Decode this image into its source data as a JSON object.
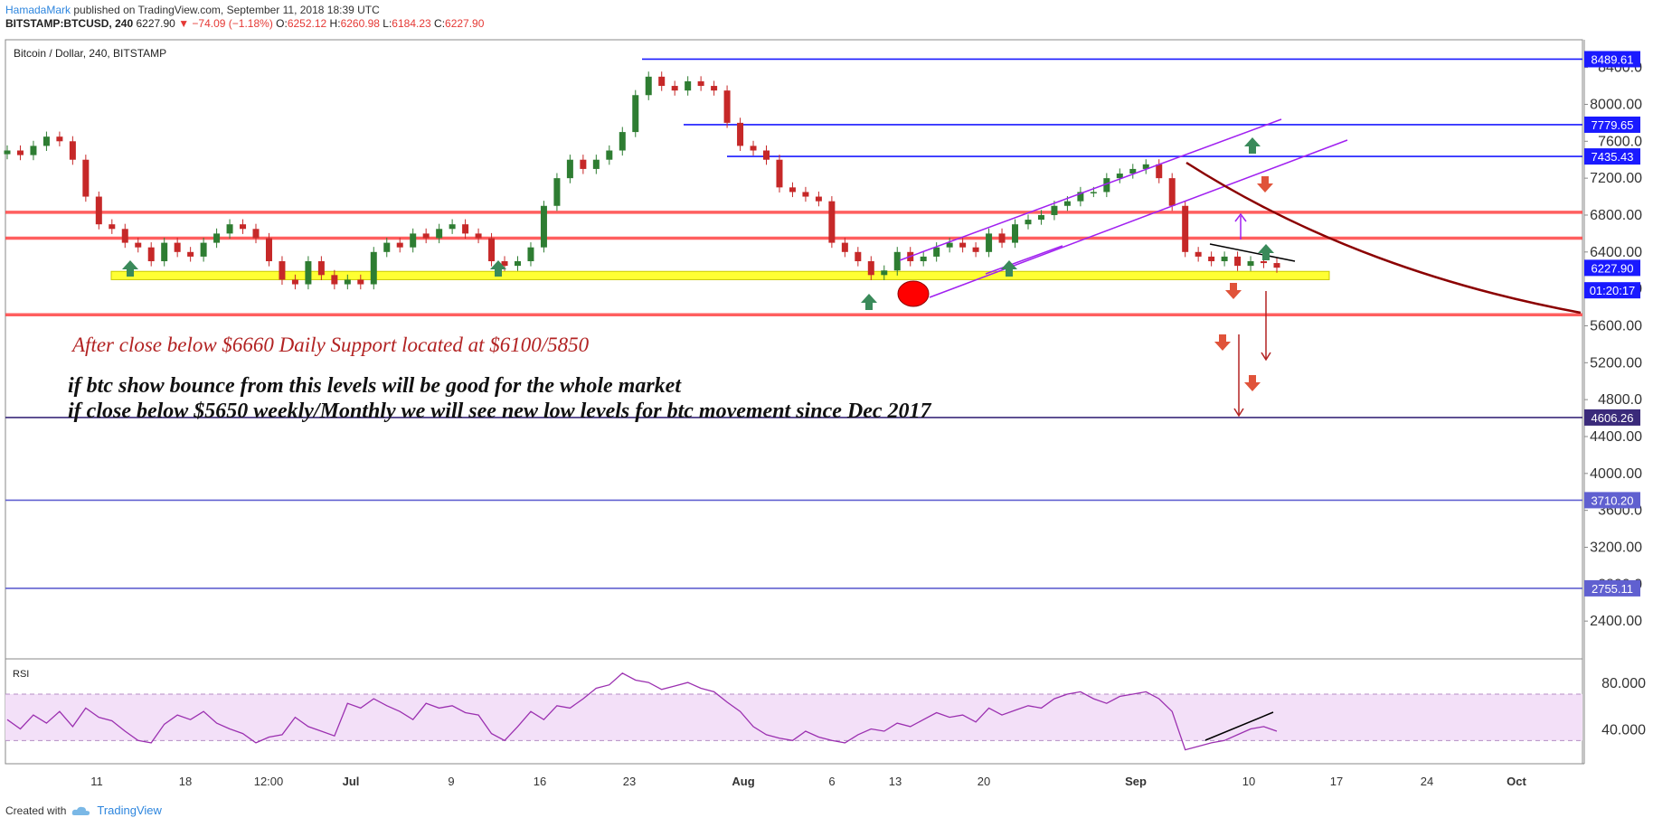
{
  "header": {
    "author": "HamadaMark",
    "published": "published on TradingView.com, September 11, 2018 18:39 UTC",
    "symbol": "BITSTAMP:BTCUSD, 240",
    "last": "6227.90",
    "change": "▼ −74.09 (−1.18%)",
    "o": "6252.12",
    "h": "6260.98",
    "l": "6184.23",
    "c": "6227.90"
  },
  "chart_title": "Bitcoin / Dollar, 240, BITSTAMP",
  "footer": {
    "created_with": "Created with",
    "brand": "TradingView"
  },
  "annotations": {
    "support_note": "After close below $6660 Daily Support located at $6100/5850",
    "line1": "if btc show bounce from this levels will be good for the whole market",
    "line2": "if close below $5650 weekly/Monthly we will see new low levels for btc movement since Dec 2017"
  },
  "price_labels": [
    {
      "text": "8489.61",
      "price": 8489.61,
      "color": "#1a1aff",
      "text_color": "#ffffff"
    },
    {
      "text": "7779.65",
      "price": 7779.65,
      "color": "#1a1aff",
      "text_color": "#ffffff"
    },
    {
      "text": "7435.43",
      "price": 7435.43,
      "color": "#1a1aff",
      "text_color": "#ffffff"
    },
    {
      "text": "6227.90",
      "price": 6227.9,
      "color": "#1a1aff",
      "text_color": "#ffffff"
    },
    {
      "text": "01:20:17",
      "price": 5985,
      "color": "#1a1aff",
      "text_color": "#ffffff"
    },
    {
      "text": "4606.26",
      "price": 4606.26,
      "color": "#3a2a7a",
      "text_color": "#ffffff"
    },
    {
      "text": "3710.20",
      "price": 3710.2,
      "color": "#6060d0",
      "text_color": "#ffffff"
    },
    {
      "text": "2755.11",
      "price": 2755.11,
      "color": "#6060d0",
      "text_color": "#ffffff"
    }
  ],
  "chart_data": [
    {
      "type": "candlestick",
      "title": "Bitcoin / Dollar, 240, BITSTAMP",
      "ylim": [
        2000,
        8700
      ],
      "y_ticks": [
        "8400.0",
        "8000.00",
        "7600.0",
        "7200.00",
        "6800.00",
        "6400.00",
        "6000.00",
        "5600.00",
        "5200.00",
        "4800.0",
        "4400.00",
        "4000.00",
        "3600.0",
        "3200.00",
        "2800.0",
        "2400.00"
      ],
      "x_ticks": [
        "11",
        "18",
        "12:00",
        "Jul",
        "9",
        "16",
        "23",
        "Aug",
        "6",
        "13",
        "20",
        "Sep",
        "10",
        "17",
        "24",
        "Oct"
      ],
      "x_label": "",
      "y_label": "",
      "close_series": [
        7500,
        7450,
        7550,
        7650,
        7600,
        7400,
        7000,
        6700,
        6650,
        6500,
        6450,
        6300,
        6500,
        6400,
        6350,
        6500,
        6600,
        6700,
        6650,
        6550,
        6300,
        6100,
        6050,
        6300,
        6150,
        6050,
        6100,
        6050,
        6400,
        6500,
        6450,
        6600,
        6550,
        6650,
        6700,
        6600,
        6550,
        6300,
        6250,
        6300,
        6450,
        6900,
        7200,
        7400,
        7300,
        7400,
        7500,
        7700,
        8100,
        8300,
        8200,
        8150,
        8250,
        8200,
        8150,
        7800,
        7550,
        7500,
        7400,
        7100,
        7050,
        7000,
        6950,
        6500,
        6400,
        6300,
        6150,
        6200,
        6400,
        6300,
        6350,
        6450,
        6500,
        6450,
        6400,
        6600,
        6500,
        6700,
        6750,
        6800,
        6900,
        6950,
        7050,
        7050,
        7200,
        7250,
        7300,
        7350,
        7200,
        6900,
        6400,
        6350,
        6300,
        6350,
        6250,
        6300,
        6280,
        6230
      ],
      "horizontal_levels": [
        {
          "price": 8489.61,
          "color": "#1a1aff"
        },
        {
          "price": 7779.65,
          "color": "#1a1aff"
        },
        {
          "price": 7435.43,
          "color": "#1a1aff"
        },
        {
          "price": 6830,
          "color": "#ff4444"
        },
        {
          "price": 6550,
          "color": "#ff4444"
        },
        {
          "price": 5720,
          "color": "#ff4444"
        },
        {
          "price": 4606.26,
          "color": "#3a2a7a"
        },
        {
          "price": 3710.2,
          "color": "#6060d0"
        },
        {
          "price": 2755.11,
          "color": "#6060d0"
        }
      ],
      "support_zone": {
        "from": 6100,
        "to": 6190,
        "color": "#ffff33"
      }
    },
    {
      "type": "line",
      "title": "RSI",
      "ylim": [
        10,
        98
      ],
      "y_ticks": [
        "80.000",
        "40.000"
      ],
      "band": [
        30,
        70
      ],
      "values": [
        48,
        40,
        52,
        45,
        55,
        42,
        58,
        50,
        47,
        38,
        30,
        28,
        44,
        52,
        48,
        55,
        45,
        40,
        36,
        28,
        33,
        35,
        50,
        42,
        38,
        34,
        62,
        58,
        66,
        60,
        55,
        48,
        62,
        58,
        60,
        54,
        52,
        36,
        30,
        42,
        55,
        48,
        60,
        58,
        66,
        75,
        78,
        88,
        82,
        80,
        74,
        77,
        80,
        75,
        72,
        63,
        55,
        42,
        35,
        32,
        30,
        38,
        33,
        30,
        28,
        35,
        40,
        38,
        45,
        42,
        48,
        54,
        50,
        52,
        46,
        58,
        52,
        56,
        60,
        58,
        66,
        70,
        72,
        66,
        62,
        68,
        70,
        72,
        66,
        55,
        22,
        25,
        28,
        30,
        35,
        40,
        42,
        38
      ]
    }
  ]
}
